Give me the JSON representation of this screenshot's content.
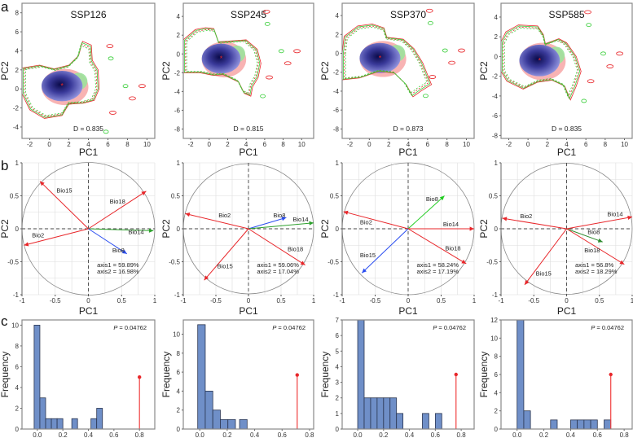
{
  "panel_labels": [
    "a",
    "b",
    "c"
  ],
  "chart_data": [
    {
      "type": "scatter",
      "row": "a",
      "title": "SSP126",
      "xlabel": "PC1",
      "ylabel": "PC2",
      "xlim": [
        -2.8,
        10.8
      ],
      "ylim": [
        -5.2,
        9
      ],
      "xticks": [
        -2,
        0,
        2,
        4,
        6,
        8,
        10
      ],
      "yticks": [
        -4,
        -2,
        0,
        2,
        4,
        6,
        8
      ],
      "annotation": "D = 0.835"
    },
    {
      "type": "scatter",
      "row": "a",
      "title": "SSP245",
      "xlabel": "PC1",
      "ylabel": "PC2",
      "xlim": [
        -2.8,
        11.3
      ],
      "ylim": [
        -9,
        5.4
      ],
      "xticks": [
        -2,
        0,
        2,
        4,
        6,
        8,
        10
      ],
      "yticks": [
        -8,
        -6,
        -4,
        -2,
        0,
        2,
        4
      ],
      "annotation": "D = 0.815"
    },
    {
      "type": "scatter",
      "row": "a",
      "title": "SSP370",
      "xlabel": "PC1",
      "ylabel": "PC2",
      "xlim": [
        -2.8,
        10.8
      ],
      "ylim": [
        -9,
        5.3
      ],
      "xticks": [
        -2,
        0,
        2,
        4,
        6,
        8,
        10
      ],
      "yticks": [
        -8,
        -6,
        -4,
        -2,
        0,
        2,
        4
      ],
      "annotation": "D = 0.873"
    },
    {
      "type": "scatter",
      "row": "a",
      "title": "SSP585",
      "xlabel": "PC1",
      "ylabel": "PC2",
      "xlim": [
        -2.8,
        10.8
      ],
      "ylim": [
        -8.3,
        5.4
      ],
      "xticks": [
        -2,
        0,
        2,
        4,
        6,
        8,
        10
      ],
      "yticks": [
        -8,
        -6,
        -4,
        -2,
        0,
        2,
        4
      ],
      "annotation": "D = 0.835"
    },
    {
      "type": "line",
      "row": "b",
      "xlabel": "PC1",
      "ylabel": "PC2",
      "xlim": [
        -1,
        1
      ],
      "ylim": [
        -1,
        1
      ],
      "xticks": [
        "-1",
        "-0.5",
        "0",
        "0.5",
        "1"
      ],
      "yticks": [
        "-1",
        "-0.5",
        "0",
        "0.5",
        "1"
      ],
      "axis1": "axis1 = 59.89%",
      "axis2": "axis2 = 16.98%",
      "arrows": [
        {
          "name": "Bio15",
          "x": -0.73,
          "y": 0.72,
          "color": "#e8262a",
          "lx": -0.48,
          "ly": 0.55
        },
        {
          "name": "Bio18",
          "x": 0.87,
          "y": 0.57,
          "color": "#e8262a",
          "lx": 0.32,
          "ly": 0.38
        },
        {
          "name": "Bio14",
          "x": 0.98,
          "y": -0.03,
          "color": "#2ca02c",
          "lx": 0.6,
          "ly": -0.08
        },
        {
          "name": "Bio2",
          "x": -0.97,
          "y": -0.25,
          "color": "#e8262a",
          "lx": -0.85,
          "ly": -0.13
        },
        {
          "name": "Bio8",
          "x": 0.58,
          "y": -0.38,
          "color": "#2b4ef0",
          "lx": 0.36,
          "ly": -0.36
        }
      ]
    },
    {
      "type": "line",
      "row": "b",
      "xlabel": "PC1",
      "ylabel": "PC2",
      "xlim": [
        -1,
        1
      ],
      "ylim": [
        -1,
        1
      ],
      "xticks": [
        "-1",
        "-0.5",
        "0",
        "0.5",
        "1"
      ],
      "yticks": [
        "-1",
        "-0.5",
        "0",
        "0.5",
        "1"
      ],
      "axis1": "axis1 = 59.06%",
      "axis2": "axis2 = 17.04%",
      "arrows": [
        {
          "name": "Bio2",
          "x": -0.97,
          "y": 0.23,
          "color": "#e8262a",
          "lx": -0.46,
          "ly": 0.17
        },
        {
          "name": "Bio8",
          "x": 0.58,
          "y": 0.17,
          "color": "#2b4ef0",
          "lx": 0.38,
          "ly": 0.17
        },
        {
          "name": "Bio14",
          "x": 1.0,
          "y": 0.09,
          "color": "#2ca02c",
          "lx": 0.68,
          "ly": 0.11
        },
        {
          "name": "Bio18",
          "x": 0.87,
          "y": -0.55,
          "color": "#e8262a",
          "lx": 0.6,
          "ly": -0.34
        },
        {
          "name": "Bio15",
          "x": -0.68,
          "y": -0.78,
          "color": "#e8262a",
          "lx": -0.48,
          "ly": -0.6
        }
      ]
    },
    {
      "type": "line",
      "row": "b",
      "xlabel": "PC1",
      "ylabel": "PC2",
      "xlim": [
        -1,
        1
      ],
      "ylim": [
        -1,
        1
      ],
      "xticks": [
        "-1",
        "-0.5",
        "0",
        "0.5",
        "1"
      ],
      "yticks": [
        "-1",
        "-0.5",
        "0",
        "0.5",
        "1"
      ],
      "axis1": "axis1 = 58.24%",
      "axis2": "axis2 = 17.19%",
      "arrows": [
        {
          "name": "Bio8",
          "x": 0.55,
          "y": 0.5,
          "color": "#22cc22",
          "lx": 0.27,
          "ly": 0.42
        },
        {
          "name": "Bio2",
          "x": -0.98,
          "y": 0.26,
          "color": "#e8262a",
          "lx": -0.73,
          "ly": 0.07
        },
        {
          "name": "Bio14",
          "x": 1.0,
          "y": 0.0,
          "color": "#e8262a",
          "lx": 0.53,
          "ly": 0.04
        },
        {
          "name": "Bio18",
          "x": 0.88,
          "y": -0.53,
          "color": "#e8262a",
          "lx": 0.56,
          "ly": -0.33
        },
        {
          "name": "Bio15",
          "x": -0.7,
          "y": -0.67,
          "color": "#2b4ef0",
          "lx": -0.73,
          "ly": -0.43
        }
      ]
    },
    {
      "type": "line",
      "row": "b",
      "xlabel": "PC1",
      "ylabel": "PC2",
      "xlim": [
        -1,
        1
      ],
      "ylim": [
        -1,
        1
      ],
      "xticks": [
        "-1",
        "-0.5",
        "0",
        "0.5",
        "1"
      ],
      "yticks": [
        "-1",
        "-0.5",
        "0",
        "0.5",
        "1"
      ],
      "axis1": "axis1 = 56.8%",
      "axis2": "axis2 = 18.29%",
      "arrows": [
        {
          "name": "Bio2",
          "x": -0.98,
          "y": 0.16,
          "color": "#e8262a",
          "lx": -0.71,
          "ly": 0.16
        },
        {
          "name": "Bio14",
          "x": 1.0,
          "y": 0.18,
          "color": "#e8262a",
          "lx": 0.62,
          "ly": 0.19
        },
        {
          "name": "Bio8",
          "x": 0.55,
          "y": -0.2,
          "color": "#2e8b2e",
          "lx": 0.32,
          "ly": -0.08
        },
        {
          "name": "Bio18",
          "x": 0.88,
          "y": -0.54,
          "color": "#e8262a",
          "lx": 0.27,
          "ly": -0.36
        },
        {
          "name": "Bio15",
          "x": -0.64,
          "y": -0.85,
          "color": "#e8262a",
          "lx": -0.47,
          "ly": -0.71
        }
      ]
    },
    {
      "type": "bar",
      "row": "c",
      "xlabel": "",
      "ylabel": "Frequency",
      "xlim": [
        -0.12,
        0.92
      ],
      "ylim": [
        0,
        10.5
      ],
      "xticks": [
        "0.0",
        "0.2",
        "0.4",
        "0.6",
        "0.8"
      ],
      "yticks": [
        0,
        2,
        4,
        6,
        8,
        10
      ],
      "bin_width": 0.045,
      "bins": [
        [
          -0.025,
          10
        ],
        [
          0.02,
          3
        ],
        [
          0.065,
          1
        ],
        [
          0.11,
          1
        ],
        [
          0.155,
          1
        ],
        [
          0.27,
          1
        ],
        [
          0.42,
          1
        ],
        [
          0.465,
          2
        ]
      ],
      "observed": {
        "x": 0.8,
        "y": 5
      },
      "p_label": "P",
      "p_value": " = 0.04762"
    },
    {
      "type": "bar",
      "row": "c",
      "xlabel": "",
      "ylabel": "Frequency",
      "xlim": [
        -0.12,
        0.83
      ],
      "ylim": [
        0,
        11.5
      ],
      "xticks": [
        "0.0",
        "0.2",
        "0.4",
        "0.6",
        "0.8"
      ],
      "yticks": [
        0,
        2,
        4,
        6,
        8,
        10
      ],
      "bin_width": 0.055,
      "bins": [
        [
          -0.015,
          11
        ],
        [
          0.04,
          4
        ],
        [
          0.095,
          2
        ],
        [
          0.15,
          1
        ],
        [
          0.205,
          1
        ],
        [
          0.29,
          1
        ]
      ],
      "observed": {
        "x": 0.71,
        "y": 5.7
      },
      "p_label": "P",
      "p_value": " = 0.04762"
    },
    {
      "type": "bar",
      "row": "c",
      "xlabel": "",
      "ylabel": "Frequency",
      "xlim": [
        -0.12,
        0.9
      ],
      "ylim": [
        0,
        7
      ],
      "xticks": [
        "0.0",
        "0.2",
        "0.4",
        "0.6",
        "0.8"
      ],
      "yticks": [
        0,
        1,
        2,
        3,
        4,
        5,
        6,
        7
      ],
      "bin_width": 0.05,
      "bins": [
        [
          0.0,
          7
        ],
        [
          0.05,
          2
        ],
        [
          0.1,
          2
        ],
        [
          0.15,
          2
        ],
        [
          0.2,
          2
        ],
        [
          0.25,
          2
        ],
        [
          0.3,
          1
        ],
        [
          0.5,
          1
        ],
        [
          0.6,
          1
        ]
      ],
      "observed": {
        "x": 0.76,
        "y": 3.5
      },
      "p_label": "P",
      "p_value": " = 0.04762"
    },
    {
      "type": "bar",
      "row": "c",
      "xlabel": "",
      "ylabel": "Frequency",
      "xlim": [
        -0.12,
        0.86
      ],
      "ylim": [
        0,
        12
      ],
      "xticks": [
        "0.0",
        "0.2",
        "0.4",
        "0.6",
        "0.8"
      ],
      "yticks": [
        0,
        2,
        4,
        6,
        8,
        10,
        12
      ],
      "bin_width": 0.05,
      "bins": [
        [
          0.0,
          12
        ],
        [
          0.05,
          2
        ],
        [
          0.25,
          1
        ],
        [
          0.4,
          1
        ],
        [
          0.45,
          1
        ],
        [
          0.5,
          1
        ],
        [
          0.55,
          1
        ],
        [
          0.65,
          1
        ]
      ],
      "observed": {
        "x": 0.7,
        "y": 6
      },
      "p_label": "P",
      "p_value": " = 0.04762"
    }
  ]
}
